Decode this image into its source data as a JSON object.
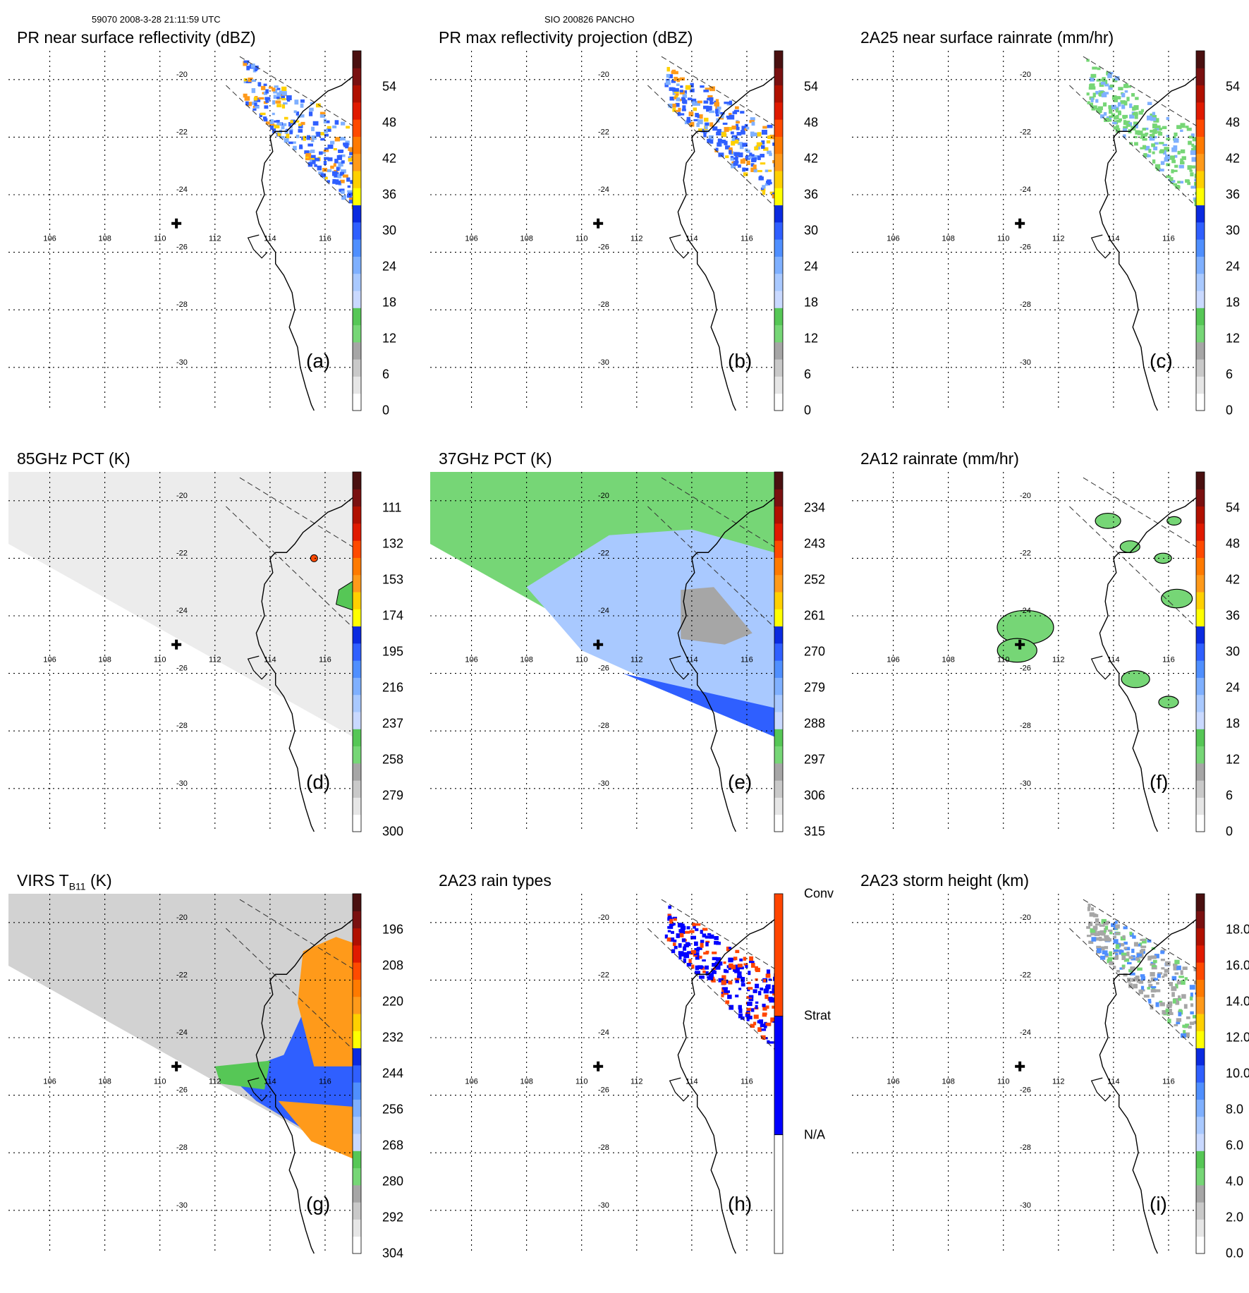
{
  "header": {
    "left": "59070 2008-3-28 21:11:59 UTC",
    "center": "SIO 200826 PANCHO"
  },
  "map": {
    "lon_labels": [
      "106",
      "108",
      "110",
      "112",
      "114",
      "116"
    ],
    "lat_labels": [
      "-20",
      "-22",
      "-24",
      "-26",
      "-28",
      "-30"
    ]
  },
  "panels": [
    {
      "id": "a",
      "title": "PR near surface reflectivity (dBZ)",
      "label": "(a)",
      "ticks": [
        "54",
        "48",
        "42",
        "36",
        "30",
        "24",
        "18",
        "12",
        "6",
        "0"
      ],
      "field": "pr"
    },
    {
      "id": "b",
      "title": "PR max reflectivity projection (dBZ)",
      "label": "(b)",
      "ticks": [
        "54",
        "48",
        "42",
        "36",
        "30",
        "24",
        "18",
        "12",
        "6",
        "0"
      ],
      "field": "pr"
    },
    {
      "id": "c",
      "title": "2A25 near surface rainrate (mm/hr)",
      "label": "(c)",
      "ticks": [
        "54",
        "48",
        "42",
        "36",
        "30",
        "24",
        "18",
        "12",
        "6",
        "0"
      ],
      "field": "pr"
    },
    {
      "id": "d",
      "title": "85GHz PCT (K)",
      "label": "(d)",
      "ticks": [
        "111",
        "132",
        "153",
        "174",
        "195",
        "216",
        "237",
        "258",
        "279",
        "300"
      ],
      "field": "tmi85"
    },
    {
      "id": "e",
      "title": "37GHz PCT (K)",
      "label": "(e)",
      "ticks": [
        "234",
        "243",
        "252",
        "261",
        "270",
        "279",
        "288",
        "297",
        "306",
        "315"
      ],
      "field": "tmi37"
    },
    {
      "id": "f",
      "title": "2A12 rainrate (mm/hr)",
      "label": "(f)",
      "ticks": [
        "54",
        "48",
        "42",
        "36",
        "30",
        "24",
        "18",
        "12",
        "6",
        "0"
      ],
      "field": "tmirain"
    },
    {
      "id": "g",
      "title": "VIRS T",
      "title_sub": "B11",
      "title_tail": " (K)",
      "label": "(g)",
      "ticks": [
        "196",
        "208",
        "220",
        "232",
        "244",
        "256",
        "268",
        "280",
        "292",
        "304"
      ],
      "field": "virs"
    },
    {
      "id": "h",
      "title": "2A23 rain types",
      "label": "(h)",
      "ticks": [
        "Conv",
        "Strat",
        "N/A"
      ],
      "field": "raintype"
    },
    {
      "id": "i",
      "title": "2A23 storm height (km)",
      "label": "(i)",
      "ticks": [
        "18.0",
        "16.0",
        "14.0",
        "12.0",
        "10.0",
        "8.0",
        "6.0",
        "4.0",
        "2.0",
        "0.0"
      ],
      "field": "pr"
    }
  ],
  "colors": {
    "scale": [
      "#ffffff",
      "#e6e6e6",
      "#c9c9c9",
      "#a6a6a6",
      "#76d676",
      "#56c756",
      "#c9d9ff",
      "#a9c9ff",
      "#7fb0ff",
      "#4f8fff",
      "#2f5fff",
      "#0a2ae0",
      "#ffff00",
      "#ffd000",
      "#ff9a1a",
      "#ff7a00",
      "#ff4a00",
      "#e01a00",
      "#b01000",
      "#7a1010",
      "#4a1010"
    ],
    "rain_type": {
      "conv": "#ff4500",
      "strat": "#0000ff",
      "na": "#ffffff"
    },
    "coast": "#000000",
    "grid": "#000000"
  }
}
